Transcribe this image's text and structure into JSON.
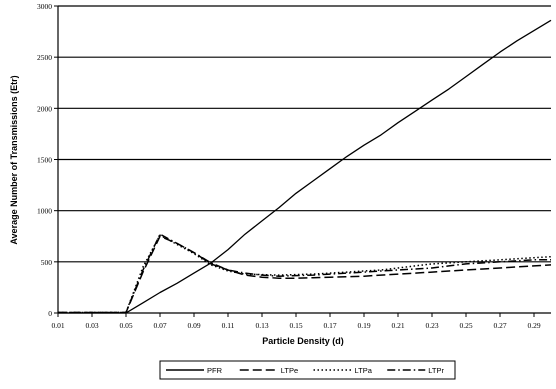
{
  "chart_data": {
    "type": "line",
    "title": "",
    "xlabel": "Particle Density (d)",
    "ylabel": "Average Number of Transmissions (Etr)",
    "xlim": [
      0.01,
      0.3
    ],
    "ylim": [
      0,
      3000
    ],
    "x_ticks": [
      "0.01",
      "0.03",
      "0.05",
      "0.07",
      "0.09",
      "0.11",
      "0.13",
      "0.15",
      "0.17",
      "0.19",
      "0.21",
      "0.23",
      "0.25",
      "0.27",
      "0.29"
    ],
    "y_ticks": [
      0,
      500,
      1000,
      1500,
      2000,
      2500,
      3000
    ],
    "grid": "horizontal",
    "legend": "bottom",
    "x": [
      0.01,
      0.02,
      0.03,
      0.04,
      0.05,
      0.06,
      0.07,
      0.08,
      0.09,
      0.1,
      0.11,
      0.12,
      0.13,
      0.14,
      0.15,
      0.16,
      0.17,
      0.18,
      0.19,
      0.2,
      0.21,
      0.22,
      0.23,
      0.24,
      0.25,
      0.26,
      0.27,
      0.28,
      0.29,
      0.3
    ],
    "series": [
      {
        "name": "PFR",
        "dash": "solid",
        "values": [
          0,
          0,
          0,
          0,
          0,
          100,
          200,
          290,
          390,
          490,
          620,
          770,
          900,
          1030,
          1170,
          1290,
          1410,
          1530,
          1640,
          1740,
          1860,
          1970,
          2080,
          2190,
          2310,
          2430,
          2550,
          2660,
          2760,
          2860
        ]
      },
      {
        "name": "LTPe",
        "dash": "dashed",
        "values": [
          5,
          5,
          5,
          5,
          5,
          400,
          750,
          680,
          590,
          480,
          420,
          370,
          350,
          340,
          340,
          345,
          350,
          355,
          360,
          370,
          380,
          390,
          400,
          410,
          420,
          430,
          440,
          450,
          460,
          470
        ]
      },
      {
        "name": "LTPa",
        "dash": "dotted",
        "values": [
          5,
          5,
          5,
          5,
          5,
          450,
          760,
          670,
          580,
          470,
          410,
          380,
          375,
          370,
          375,
          380,
          390,
          400,
          410,
          420,
          440,
          460,
          480,
          490,
          500,
          510,
          520,
          530,
          540,
          550
        ]
      },
      {
        "name": "LTPr",
        "dash": "dashdot",
        "values": [
          5,
          5,
          5,
          5,
          5,
          420,
          770,
          680,
          590,
          490,
          420,
          390,
          370,
          360,
          365,
          370,
          380,
          390,
          400,
          410,
          420,
          430,
          440,
          460,
          480,
          490,
          500,
          510,
          520,
          520
        ]
      }
    ]
  }
}
